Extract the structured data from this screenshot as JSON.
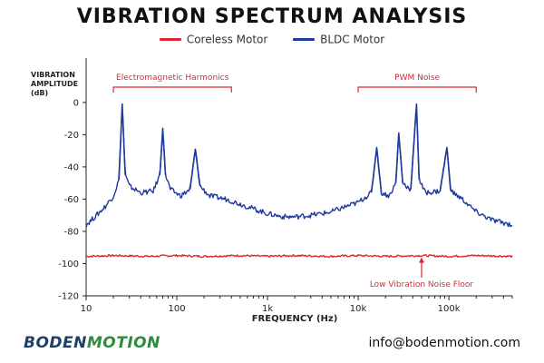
{
  "title": "VIBRATION SPECTRUM ANALYSIS",
  "footer": {
    "brand_main": "BODEN",
    "brand_accent": "MOTION",
    "email": "info@bodenmotion.com"
  },
  "colors": {
    "coreless": "#e0262e",
    "bldc": "#1f3a9e",
    "annotation": "#e0262e"
  },
  "chart_data": {
    "type": "line",
    "title": "VIBRATION SPECTRUM ANALYSIS",
    "xlabel": "FREQUENCY (Hz)",
    "ylabel": "VIBRATION AMPLITUDE (dB)",
    "xscale": "log",
    "xlim": [
      10,
      500000
    ],
    "ylim": [
      -120,
      5
    ],
    "x_ticks": [
      10,
      100,
      1000,
      10000,
      100000
    ],
    "x_tick_labels": [
      "10",
      "100",
      "1k",
      "10k",
      "100k"
    ],
    "y_ticks": [
      0,
      -20,
      -40,
      -60,
      -80,
      -100,
      -120
    ],
    "y_tick_labels": [
      "0",
      "-20",
      "-40",
      "-60",
      "-80",
      "-100",
      "-120"
    ],
    "grid": false,
    "legend_position": "top-center",
    "series": [
      {
        "name": "Coreless Motor",
        "color": "#e0262e",
        "x": [
          10,
          20,
          50,
          100,
          200,
          500,
          1000,
          2000,
          5000,
          10000,
          20000,
          50000,
          100000,
          200000,
          500000
        ],
        "y": [
          -95.5,
          -95,
          -95.5,
          -95,
          -95.5,
          -95,
          -95.5,
          -95,
          -95.5,
          -95,
          -95.5,
          -95,
          -95.5,
          -95,
          -95.5
        ]
      },
      {
        "name": "BLDC Motor",
        "color": "#1f3a9e",
        "x": [
          10,
          13,
          16,
          20,
          23,
          25,
          27,
          30,
          40,
          55,
          65,
          70,
          75,
          85,
          110,
          140,
          160,
          180,
          230,
          350,
          500,
          700,
          1000,
          1500,
          2000,
          3000,
          5000,
          7000,
          10000,
          14000,
          16000,
          18000,
          22000,
          26000,
          28000,
          31000,
          38000,
          44000,
          47000,
          55000,
          80000,
          95000,
          105000,
          140000,
          200000,
          300000,
          500000
        ],
        "y": [
          -76,
          -70,
          -65,
          -58,
          -48,
          -1,
          -45,
          -52,
          -56,
          -55,
          -45,
          -16,
          -45,
          -54,
          -58,
          -54,
          -29,
          -52,
          -58,
          -60,
          -63,
          -66,
          -69,
          -71,
          -71,
          -70,
          -68,
          -65,
          -62,
          -56,
          -28,
          -56,
          -58,
          -50,
          -19,
          -50,
          -54,
          -1,
          -48,
          -56,
          -55,
          -28,
          -55,
          -60,
          -68,
          -73,
          -76
        ]
      }
    ],
    "annotations": [
      {
        "text": "Electromagnetic Harmonics",
        "x_range": [
          20,
          400
        ]
      },
      {
        "text": "PWM Noise",
        "x_range": [
          10000,
          200000
        ]
      },
      {
        "text": "Low Vibration Noise Floor",
        "x": 50000,
        "y": -95
      }
    ]
  }
}
